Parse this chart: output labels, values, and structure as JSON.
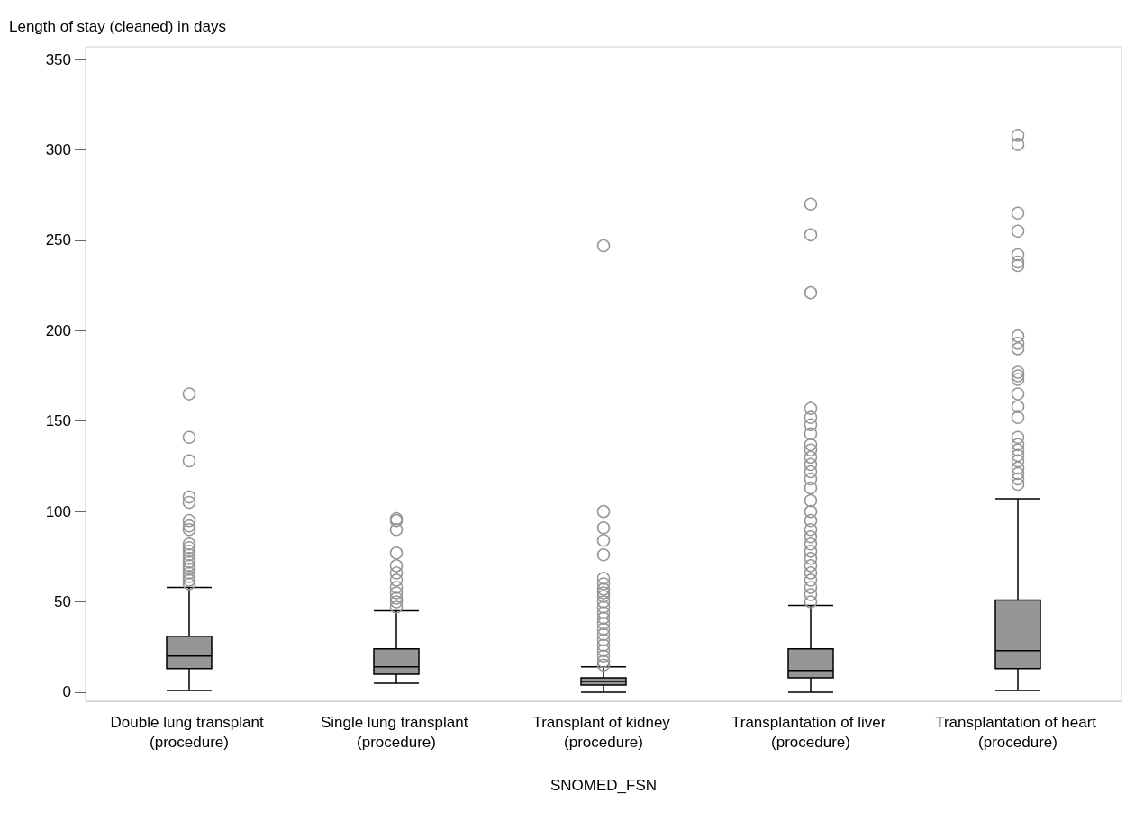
{
  "chart_data": {
    "type": "box",
    "ylabel": "Length of stay (cleaned) in days",
    "xlabel": "SNOMED_FSN",
    "categories": [
      "Double lung transplant (procedure)",
      "Single lung transplant (procedure)",
      "Transplant of kidney (procedure)",
      "Transplantation of liver (procedure)",
      "Transplantation of heart (procedure)"
    ],
    "color": "#969696",
    "boxes": [
      {
        "low": 1,
        "q1": 13,
        "median": 20,
        "q3": 31,
        "high": 58,
        "outliers": [
          165,
          141,
          128,
          108,
          105,
          95,
          92,
          90,
          82,
          80,
          78,
          76,
          74,
          72,
          70,
          68,
          66,
          64,
          62,
          60
        ]
      },
      {
        "low": 5,
        "q1": 10,
        "median": 14,
        "q3": 24,
        "high": 45,
        "outliers": [
          96,
          95,
          90,
          77,
          70,
          66,
          62,
          58,
          55,
          52,
          50,
          47
        ]
      },
      {
        "low": 0,
        "q1": 4,
        "median": 6,
        "q3": 8,
        "high": 14,
        "outliers": [
          247,
          100,
          91,
          84,
          76,
          63,
          60,
          57,
          55,
          53,
          50,
          47,
          44,
          41,
          38,
          35,
          32,
          29,
          26,
          23,
          20,
          17,
          15
        ]
      },
      {
        "low": 0,
        "q1": 8,
        "median": 12,
        "q3": 24,
        "high": 48,
        "outliers": [
          270,
          253,
          221,
          157,
          152,
          148,
          143,
          137,
          134,
          130,
          126,
          122,
          118,
          113,
          106,
          100,
          95,
          90,
          86,
          82,
          78,
          74,
          70,
          66,
          62,
          58,
          54,
          50
        ]
      },
      {
        "low": 1,
        "q1": 13,
        "median": 23,
        "q3": 51,
        "high": 107,
        "outliers": [
          308,
          303,
          265,
          255,
          242,
          238,
          236,
          197,
          193,
          190,
          177,
          175,
          173,
          165,
          158,
          152,
          141,
          137,
          134,
          131,
          128,
          124,
          121,
          118,
          115
        ]
      }
    ],
    "ylim": [
      -5,
      357
    ],
    "yticks": [
      0,
      50,
      100,
      150,
      200,
      250,
      300,
      350
    ],
    "grid": false
  }
}
